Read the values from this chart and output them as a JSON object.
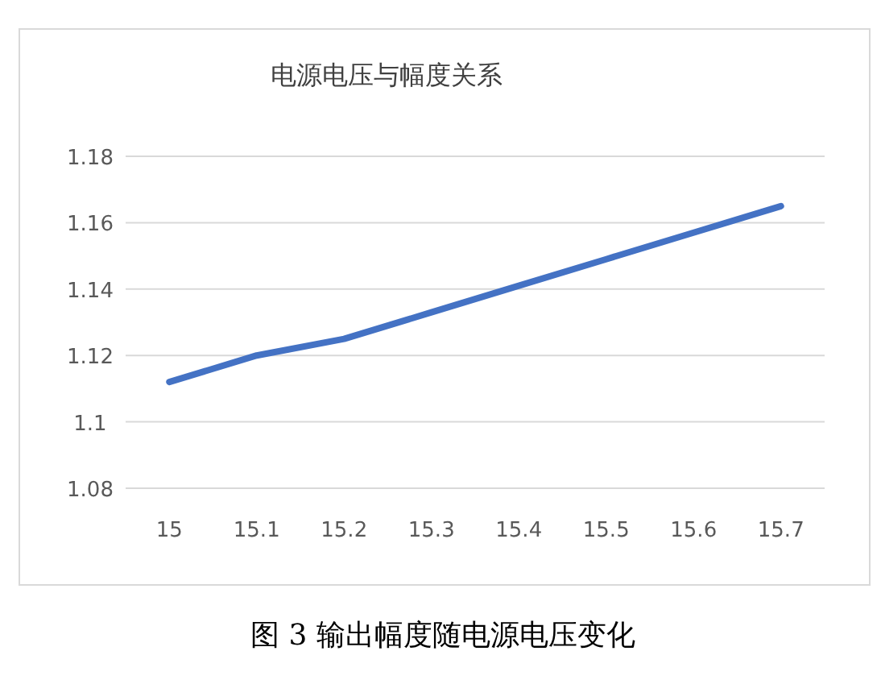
{
  "chart_data": {
    "type": "line",
    "title": "电源电压与幅度关系",
    "categories": [
      "15",
      "15.1",
      "15.2",
      "15.3",
      "15.4",
      "15.5",
      "15.6",
      "15.7"
    ],
    "series": [
      {
        "color": "#4472c4",
        "values": [
          1.112,
          1.12,
          1.125,
          1.133,
          1.141,
          1.149,
          1.157,
          1.165
        ]
      }
    ],
    "ylim": [
      1.08,
      1.18
    ],
    "yticks": [
      1.08,
      1.1,
      1.12,
      1.14,
      1.16,
      1.18
    ],
    "grid": "y",
    "marker": "none",
    "line_style": "solid",
    "annotations": [
      "图 3  输出幅度随电源电压变化"
    ]
  }
}
